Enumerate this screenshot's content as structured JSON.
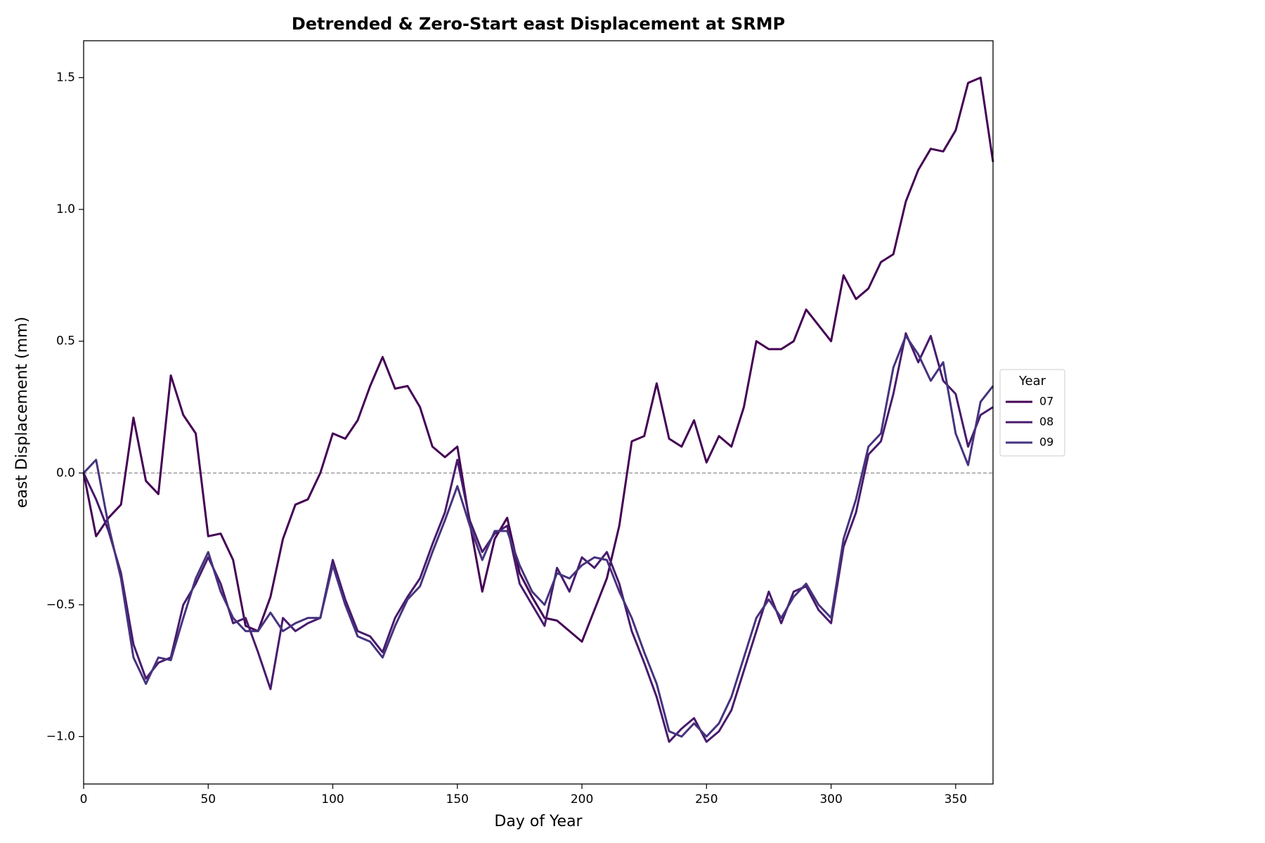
{
  "chart_data": {
    "type": "line",
    "title": "Detrended & Zero-Start east Displacement at SRMP",
    "x_label": "Day of Year",
    "y_label": "east Displacement (mm)",
    "legend_title": "Year",
    "legend_position": "right",
    "reference_line": 0,
    "x": [
      0,
      5,
      10,
      15,
      20,
      25,
      30,
      35,
      40,
      45,
      50,
      55,
      60,
      65,
      70,
      75,
      80,
      85,
      90,
      95,
      100,
      105,
      110,
      115,
      120,
      125,
      130,
      135,
      140,
      145,
      150,
      155,
      160,
      165,
      170,
      175,
      180,
      185,
      190,
      195,
      200,
      205,
      210,
      215,
      220,
      225,
      230,
      235,
      240,
      245,
      250,
      255,
      260,
      265,
      270,
      275,
      280,
      285,
      290,
      295,
      300,
      305,
      310,
      315,
      320,
      325,
      330,
      335,
      340,
      345,
      350,
      355,
      360,
      365
    ],
    "series": [
      {
        "name": "07",
        "color": "#440154",
        "values": [
          0,
          -0.24,
          -0.17,
          -0.12,
          0.21,
          -0.03,
          -0.08,
          0.37,
          0.22,
          0.15,
          -0.24,
          -0.23,
          -0.33,
          -0.58,
          -0.6,
          -0.47,
          -0.25,
          -0.12,
          -0.1,
          0.0,
          0.15,
          0.13,
          0.2,
          0.33,
          0.44,
          0.32,
          0.33,
          0.25,
          0.1,
          0.06,
          0.1,
          -0.19,
          -0.45,
          -0.25,
          -0.17,
          -0.38,
          -0.47,
          -0.55,
          -0.56,
          -0.6,
          -0.64,
          -0.52,
          -0.4,
          -0.2,
          0.12,
          0.14,
          0.34,
          0.13,
          0.1,
          0.2,
          0.04,
          0.14,
          0.1,
          0.25,
          0.5,
          0.47,
          0.47,
          0.5,
          0.62,
          0.56,
          0.5,
          0.75,
          0.66,
          0.7,
          0.8,
          0.83,
          1.03,
          1.15,
          1.23,
          1.22,
          1.3,
          1.48,
          1.5,
          1.18
        ]
      },
      {
        "name": "08",
        "color": "#481a6c",
        "values": [
          0,
          -0.1,
          -0.22,
          -0.38,
          -0.65,
          -0.78,
          -0.72,
          -0.7,
          -0.5,
          -0.42,
          -0.32,
          -0.42,
          -0.57,
          -0.55,
          -0.68,
          -0.82,
          -0.55,
          -0.6,
          -0.57,
          -0.55,
          -0.33,
          -0.48,
          -0.6,
          -0.62,
          -0.68,
          -0.55,
          -0.47,
          -0.4,
          -0.27,
          -0.15,
          0.05,
          -0.18,
          -0.3,
          -0.23,
          -0.2,
          -0.42,
          -0.5,
          -0.58,
          -0.36,
          -0.45,
          -0.32,
          -0.36,
          -0.3,
          -0.42,
          -0.6,
          -0.72,
          -0.85,
          -1.02,
          -0.97,
          -0.93,
          -1.02,
          -0.98,
          -0.9,
          -0.75,
          -0.6,
          -0.45,
          -0.57,
          -0.45,
          -0.43,
          -0.52,
          -0.57,
          -0.28,
          -0.15,
          0.07,
          0.12,
          0.3,
          0.53,
          0.42,
          0.52,
          0.35,
          0.3,
          0.1,
          0.22,
          0.25
        ]
      },
      {
        "name": "09",
        "color": "#46337e",
        "values": [
          0,
          0.05,
          -0.2,
          -0.4,
          -0.7,
          -0.8,
          -0.7,
          -0.71,
          -0.55,
          -0.4,
          -0.3,
          -0.45,
          -0.55,
          -0.6,
          -0.6,
          -0.53,
          -0.6,
          -0.57,
          -0.55,
          -0.55,
          -0.35,
          -0.5,
          -0.62,
          -0.64,
          -0.7,
          -0.58,
          -0.48,
          -0.43,
          -0.3,
          -0.18,
          -0.05,
          -0.2,
          -0.33,
          -0.22,
          -0.22,
          -0.35,
          -0.45,
          -0.5,
          -0.38,
          -0.4,
          -0.35,
          -0.32,
          -0.33,
          -0.45,
          -0.55,
          -0.68,
          -0.8,
          -0.98,
          -1.0,
          -0.95,
          -1.0,
          -0.95,
          -0.85,
          -0.7,
          -0.55,
          -0.48,
          -0.55,
          -0.47,
          -0.42,
          -0.5,
          -0.55,
          -0.25,
          -0.1,
          0.1,
          0.15,
          0.4,
          0.52,
          0.45,
          0.35,
          0.42,
          0.15,
          0.03,
          0.27,
          0.33
        ]
      }
    ],
    "xlim": [
      0,
      365
    ],
    "xticks": [
      0,
      50,
      100,
      150,
      200,
      250,
      300,
      350
    ],
    "ylim": [
      -1.18,
      1.64
    ],
    "yticks": [
      {
        "value": -1,
        "label": "−1.0"
      },
      {
        "value": -0.5,
        "label": "−0.5"
      },
      {
        "value": 0,
        "label": "0.0"
      },
      0.5,
      {
        "value": 1,
        "label": "1.0"
      },
      1.5
    ],
    "grid": false
  }
}
